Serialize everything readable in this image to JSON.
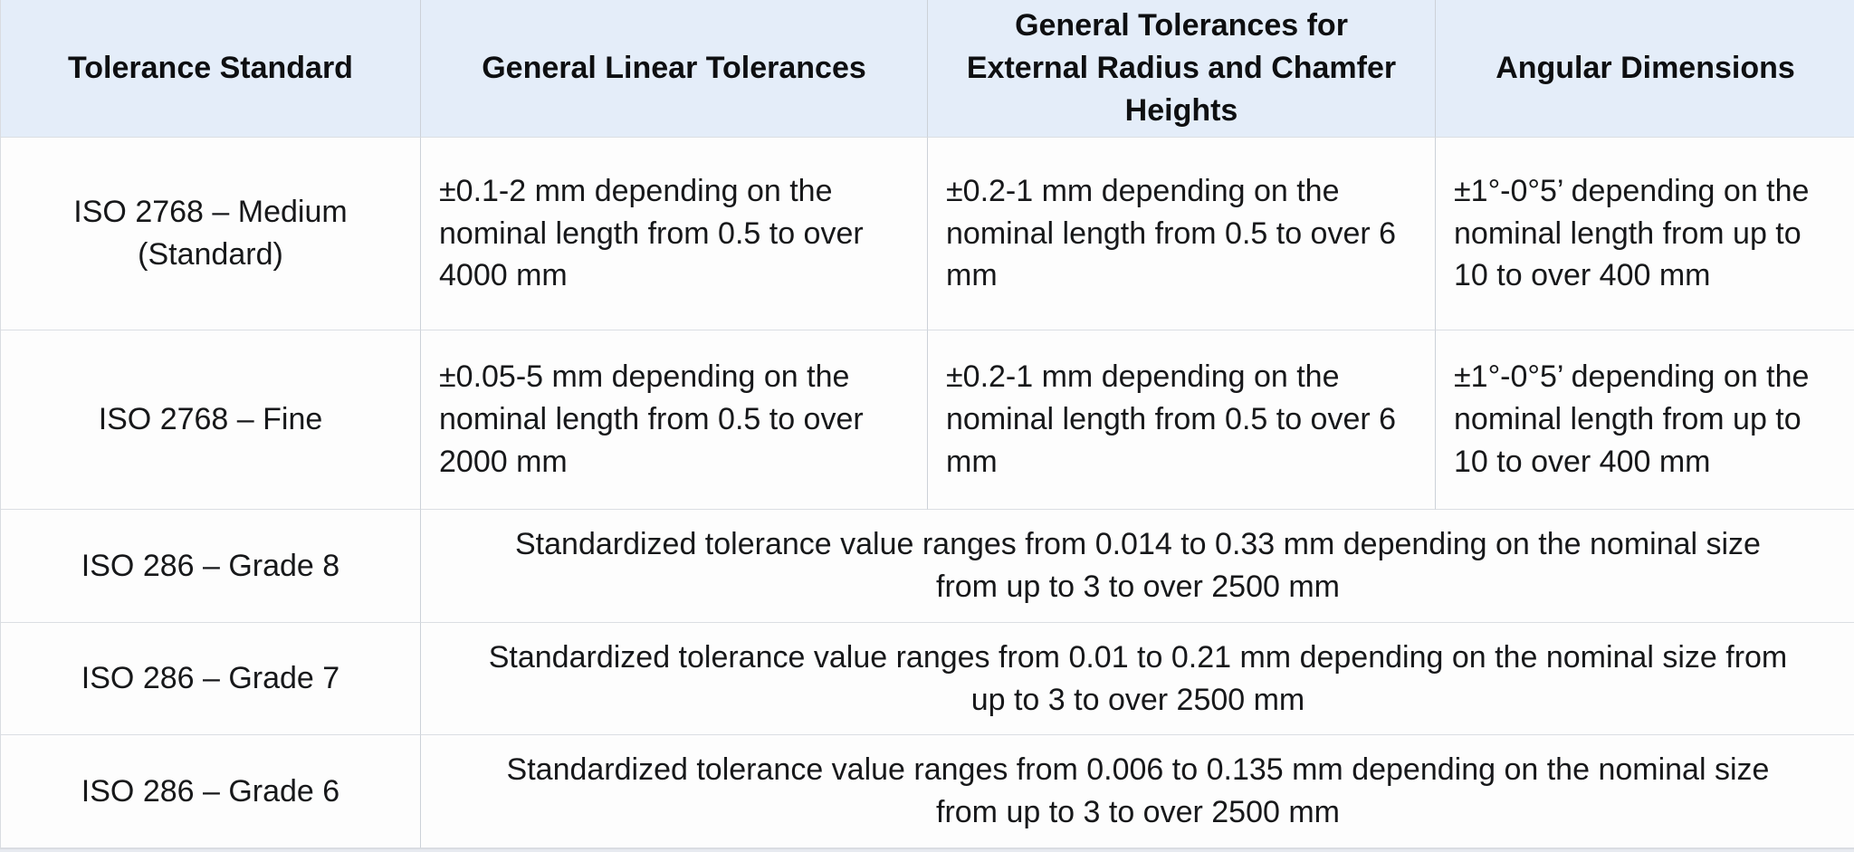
{
  "chart_data": {
    "type": "table",
    "title": "",
    "columns": [
      "Tolerance Standard",
      "General Linear Tolerances",
      "General Tolerances for External Radius and Chamfer Heights",
      "Angular Dimensions"
    ],
    "rows": [
      {
        "standard": "ISO 2768 – Medium (Standard)",
        "linear": "±0.1-2 mm depending on the nominal length from 0.5 to over 4000 mm",
        "radius_chamfer": "±0.2-1 mm depending on the nominal length from 0.5 to over 6 mm",
        "angular": "±1°-0°5’ depending on the nominal length from up to 10 to over 400 mm"
      },
      {
        "standard": "ISO 2768 – Fine",
        "linear": "±0.05-5 mm depending on the nominal length from 0.5 to over 2000 mm",
        "radius_chamfer": "±0.2-1 mm depending on the nominal length from 0.5 to over 6 mm",
        "angular": "±1°-0°5’ depending on the nominal length from up to 10 to over 400 mm"
      },
      {
        "standard": "ISO 286 – Grade 8",
        "all_columns": "Standardized tolerance value ranges from 0.014 to 0.33 mm depending on the nominal size from up to 3 to over 2500 mm"
      },
      {
        "standard": "ISO 286 – Grade 7",
        "all_columns": "Standardized tolerance value ranges from 0.01 to 0.21 mm depending on the nominal size from up to 3 to over 2500 mm"
      },
      {
        "standard": "ISO 286 – Grade 6",
        "all_columns": "Standardized tolerance value ranges from 0.006 to 0.135 mm depending on the nominal size from up to 3 to over 2500 mm"
      }
    ]
  },
  "colors": {
    "header_background": "#e4edf9",
    "cell_background": "#fdfdfd",
    "vertical_border": "#ccd1d8",
    "horizontal_border": "#dbdee3",
    "text": "#17181a"
  }
}
